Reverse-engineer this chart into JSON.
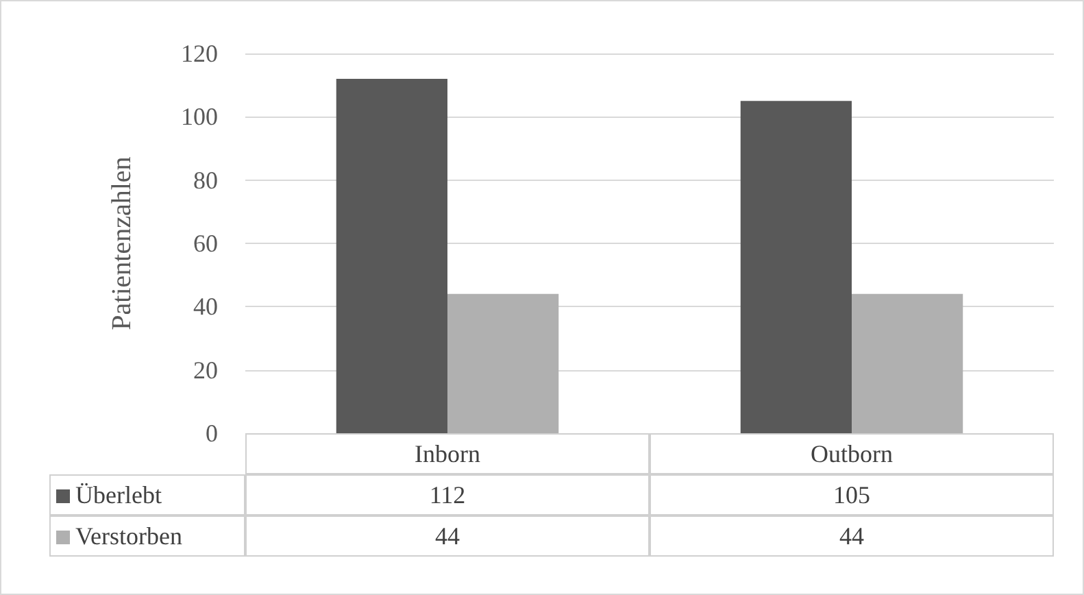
{
  "chart_data": {
    "type": "bar",
    "ylabel": "Patientenzahlen",
    "categories": [
      "Inborn",
      "Outborn"
    ],
    "series": [
      {
        "name": "Überlebt",
        "color": "#595959",
        "values": [
          112,
          105
        ]
      },
      {
        "name": "Verstorben",
        "color": "#b0b0b0",
        "values": [
          44,
          44
        ]
      }
    ],
    "ylim": [
      0,
      120
    ],
    "yticks": [
      0,
      20,
      40,
      60,
      80,
      100,
      120
    ],
    "grid": "y",
    "legend": "bottom",
    "data_labels": true
  }
}
